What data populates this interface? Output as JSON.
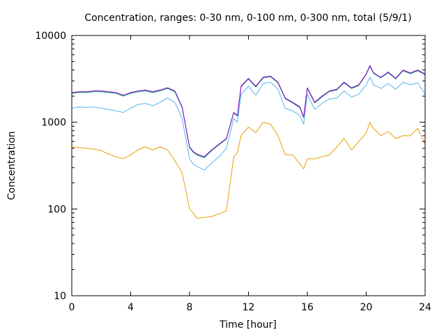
{
  "chart_data": {
    "type": "line",
    "title": "Concentration, ranges: 0-30 nm, 0-100 nm, 0-300 nm, total (5/9/1)",
    "xlabel": "Time [hour]",
    "ylabel": "Concentration",
    "xlim": [
      0,
      24
    ],
    "ylim": [
      10,
      10000
    ],
    "yscale": "log",
    "grid": false,
    "legend": "none",
    "x_ticks": [
      0,
      4,
      8,
      12,
      16,
      20,
      24
    ],
    "x_tick_labels": [
      "0",
      "4",
      "8",
      "12",
      "16",
      "20",
      "24"
    ],
    "y_ticks": [
      10,
      100,
      1000,
      10000
    ],
    "y_tick_labels": [
      "10",
      "100",
      "1000",
      "10000"
    ],
    "x": [
      0,
      0.5,
      1,
      1.5,
      2,
      2.5,
      3,
      3.5,
      4,
      4.5,
      5,
      5.5,
      6,
      6.5,
      7,
      7.5,
      8,
      8.25,
      8.5,
      9,
      9.5,
      10,
      10.5,
      11,
      11.25,
      11.5,
      12,
      12.5,
      13,
      13.5,
      14,
      14.5,
      15,
      15.5,
      15.75,
      16,
      16.5,
      17,
      17.5,
      18,
      18.5,
      19,
      19.5,
      20,
      20.25,
      20.5,
      21,
      21.5,
      22,
      22.5,
      23,
      23.5,
      24
    ],
    "series": [
      {
        "color": "#9400d3",
        "values": [
          2200,
          2250,
          2250,
          2300,
          2300,
          2250,
          2200,
          2050,
          2200,
          2300,
          2350,
          2250,
          2350,
          2500,
          2300,
          1500,
          520,
          460,
          430,
          400,
          480,
          560,
          650,
          1300,
          1200,
          2600,
          3200,
          2600,
          3300,
          3400,
          2900,
          1900,
          1700,
          1500,
          1150,
          2500,
          1700,
          2000,
          2300,
          2400,
          2900,
          2500,
          2700,
          3600,
          4500,
          3700,
          3300,
          3800,
          3200,
          4000,
          3700,
          4000,
          3600
        ]
      },
      {
        "color": "#009e73",
        "values": [
          2150,
          2200,
          2200,
          2250,
          2250,
          2200,
          2150,
          2000,
          2150,
          2250,
          2300,
          2200,
          2300,
          2450,
          2250,
          1470,
          510,
          450,
          420,
          390,
          470,
          550,
          640,
          1280,
          1180,
          2550,
          3150,
          2550,
          3250,
          3350,
          2850,
          1870,
          1670,
          1470,
          1130,
          2450,
          1670,
          1960,
          2260,
          2360,
          2850,
          2450,
          2650,
          3550,
          4400,
          3650,
          3250,
          3720,
          3150,
          3920,
          3630,
          3920,
          3530
        ]
      },
      {
        "color": "#56b4e9",
        "values": [
          1450,
          1500,
          1480,
          1500,
          1450,
          1400,
          1350,
          1300,
          1450,
          1600,
          1650,
          1550,
          1700,
          1900,
          1700,
          1100,
          380,
          330,
          310,
          280,
          340,
          400,
          500,
          1100,
          1000,
          2100,
          2600,
          2050,
          2800,
          2900,
          2400,
          1450,
          1350,
          1200,
          950,
          2100,
          1400,
          1650,
          1850,
          1900,
          2300,
          1950,
          2100,
          2700,
          3300,
          2700,
          2450,
          2800,
          2400,
          2900,
          2700,
          2850,
          2100
        ]
      },
      {
        "color": "#e69f00",
        "values": [
          520,
          510,
          500,
          490,
          470,
          430,
          400,
          380,
          420,
          480,
          520,
          480,
          520,
          480,
          360,
          260,
          100,
          90,
          78,
          80,
          82,
          88,
          95,
          400,
          450,
          700,
          880,
          760,
          1000,
          950,
          700,
          420,
          420,
          330,
          290,
          380,
          380,
          400,
          420,
          520,
          650,
          480,
          600,
          750,
          1000,
          850,
          700,
          780,
          650,
          700,
          700,
          850,
          560
        ]
      }
    ]
  }
}
